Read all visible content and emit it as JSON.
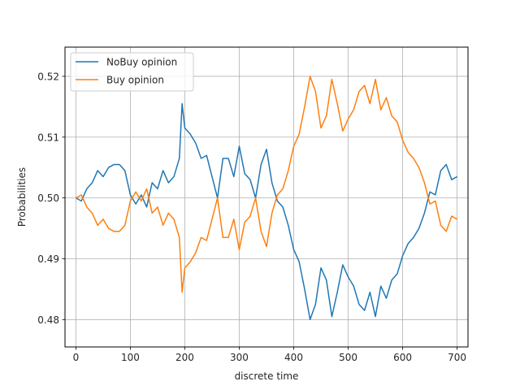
{
  "chart_data": {
    "type": "line",
    "title": "",
    "xlabel": "discrete time",
    "ylabel": "Probabilities",
    "xlim": [
      -20,
      720
    ],
    "ylim": [
      0.4755,
      0.5248
    ],
    "xticks": [
      0,
      100,
      200,
      300,
      400,
      500,
      600,
      700
    ],
    "xtick_labels": [
      "0",
      "100",
      "200",
      "300",
      "400",
      "500",
      "600",
      "700"
    ],
    "yticks": [
      0.48,
      0.49,
      0.5,
      0.51,
      0.52
    ],
    "ytick_labels": [
      "0.48",
      "0.49",
      "0.50",
      "0.51",
      "0.52"
    ],
    "grid": true,
    "legend_position": "upper-left",
    "series": [
      {
        "name": "NoBuy opinion",
        "color": "#1f77b4",
        "x": [
          0,
          10,
          20,
          30,
          40,
          50,
          60,
          70,
          80,
          90,
          100,
          110,
          120,
          130,
          140,
          150,
          160,
          170,
          180,
          190,
          195,
          200,
          210,
          220,
          230,
          240,
          250,
          260,
          270,
          280,
          290,
          300,
          310,
          320,
          330,
          340,
          350,
          360,
          370,
          380,
          390,
          400,
          410,
          420,
          430,
          440,
          450,
          460,
          470,
          480,
          490,
          500,
          510,
          520,
          530,
          540,
          550,
          560,
          570,
          580,
          590,
          600,
          610,
          620,
          630,
          640,
          650,
          660,
          670,
          680,
          690,
          700
        ],
        "values": [
          0.5,
          0.4995,
          0.5015,
          0.5025,
          0.5045,
          0.5035,
          0.505,
          0.5055,
          0.5055,
          0.5045,
          0.5005,
          0.499,
          0.5005,
          0.4985,
          0.5025,
          0.5015,
          0.5045,
          0.5025,
          0.5035,
          0.5065,
          0.5155,
          0.5115,
          0.5105,
          0.509,
          0.5065,
          0.507,
          0.5035,
          0.5,
          0.5065,
          0.5065,
          0.5035,
          0.5085,
          0.504,
          0.503,
          0.5,
          0.5055,
          0.508,
          0.5025,
          0.4995,
          0.4985,
          0.4955,
          0.4915,
          0.4895,
          0.485,
          0.48,
          0.4825,
          0.4885,
          0.4865,
          0.4805,
          0.4845,
          0.489,
          0.487,
          0.4855,
          0.4825,
          0.4815,
          0.4845,
          0.4805,
          0.4855,
          0.4835,
          0.4865,
          0.4875,
          0.4905,
          0.4925,
          0.4935,
          0.495,
          0.4975,
          0.501,
          0.5005,
          0.5045,
          0.5055,
          0.503,
          0.5035
        ]
      },
      {
        "name": "Buy opinion",
        "color": "#ff7f0e",
        "x": [
          0,
          10,
          20,
          30,
          40,
          50,
          60,
          70,
          80,
          90,
          100,
          110,
          120,
          130,
          140,
          150,
          160,
          170,
          180,
          190,
          195,
          200,
          210,
          220,
          230,
          240,
          250,
          260,
          270,
          280,
          290,
          300,
          310,
          320,
          330,
          340,
          350,
          360,
          370,
          380,
          390,
          400,
          410,
          420,
          430,
          440,
          450,
          460,
          470,
          480,
          490,
          500,
          510,
          520,
          530,
          540,
          550,
          560,
          570,
          580,
          590,
          600,
          610,
          620,
          630,
          640,
          650,
          660,
          670,
          680,
          690,
          700
        ],
        "values": [
          0.5,
          0.5005,
          0.4985,
          0.4975,
          0.4955,
          0.4965,
          0.495,
          0.4945,
          0.4945,
          0.4955,
          0.4995,
          0.501,
          0.4995,
          0.5015,
          0.4975,
          0.4985,
          0.4955,
          0.4975,
          0.4965,
          0.4935,
          0.4845,
          0.4885,
          0.4895,
          0.491,
          0.4935,
          0.493,
          0.4965,
          0.5,
          0.4935,
          0.4935,
          0.4965,
          0.4915,
          0.496,
          0.497,
          0.5,
          0.4945,
          0.492,
          0.4975,
          0.5005,
          0.5015,
          0.5045,
          0.5085,
          0.5105,
          0.515,
          0.52,
          0.5175,
          0.5115,
          0.5135,
          0.5195,
          0.5155,
          0.511,
          0.513,
          0.5145,
          0.5175,
          0.5185,
          0.5155,
          0.5195,
          0.5145,
          0.5165,
          0.5135,
          0.5125,
          0.5095,
          0.5075,
          0.5065,
          0.505,
          0.5025,
          0.499,
          0.4995,
          0.4955,
          0.4945,
          0.497,
          0.4965
        ]
      }
    ]
  }
}
